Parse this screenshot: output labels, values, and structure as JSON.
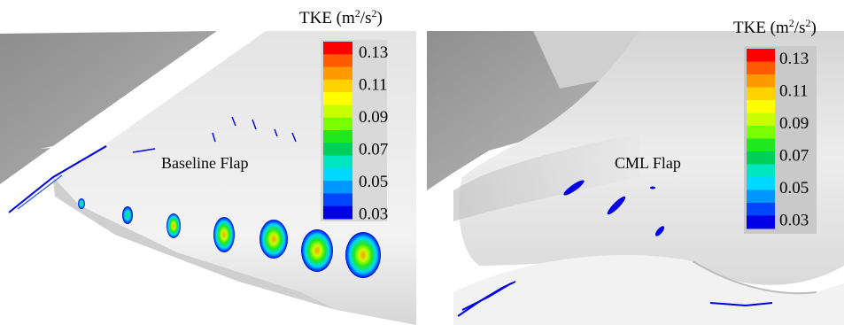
{
  "figure": {
    "colorbar": {
      "title_main": "TKE (m",
      "title_sup1": "2",
      "title_mid": "/s",
      "title_sup2": "2",
      "title_end": ")",
      "levels": [
        "0.13",
        "0.11",
        "0.09",
        "0.07",
        "0.05",
        "0.03"
      ],
      "colors": [
        "#ff0000",
        "#ff5a00",
        "#ff9900",
        "#ffd200",
        "#ffff00",
        "#c8ff00",
        "#7aff00",
        "#1fe81f",
        "#00d05a",
        "#00e6c0",
        "#00d8ff",
        "#0096ff",
        "#0046ff",
        "#0000e6"
      ]
    },
    "panels": [
      {
        "label": "Baseline Flap"
      },
      {
        "label": "CML Flap"
      }
    ]
  }
}
